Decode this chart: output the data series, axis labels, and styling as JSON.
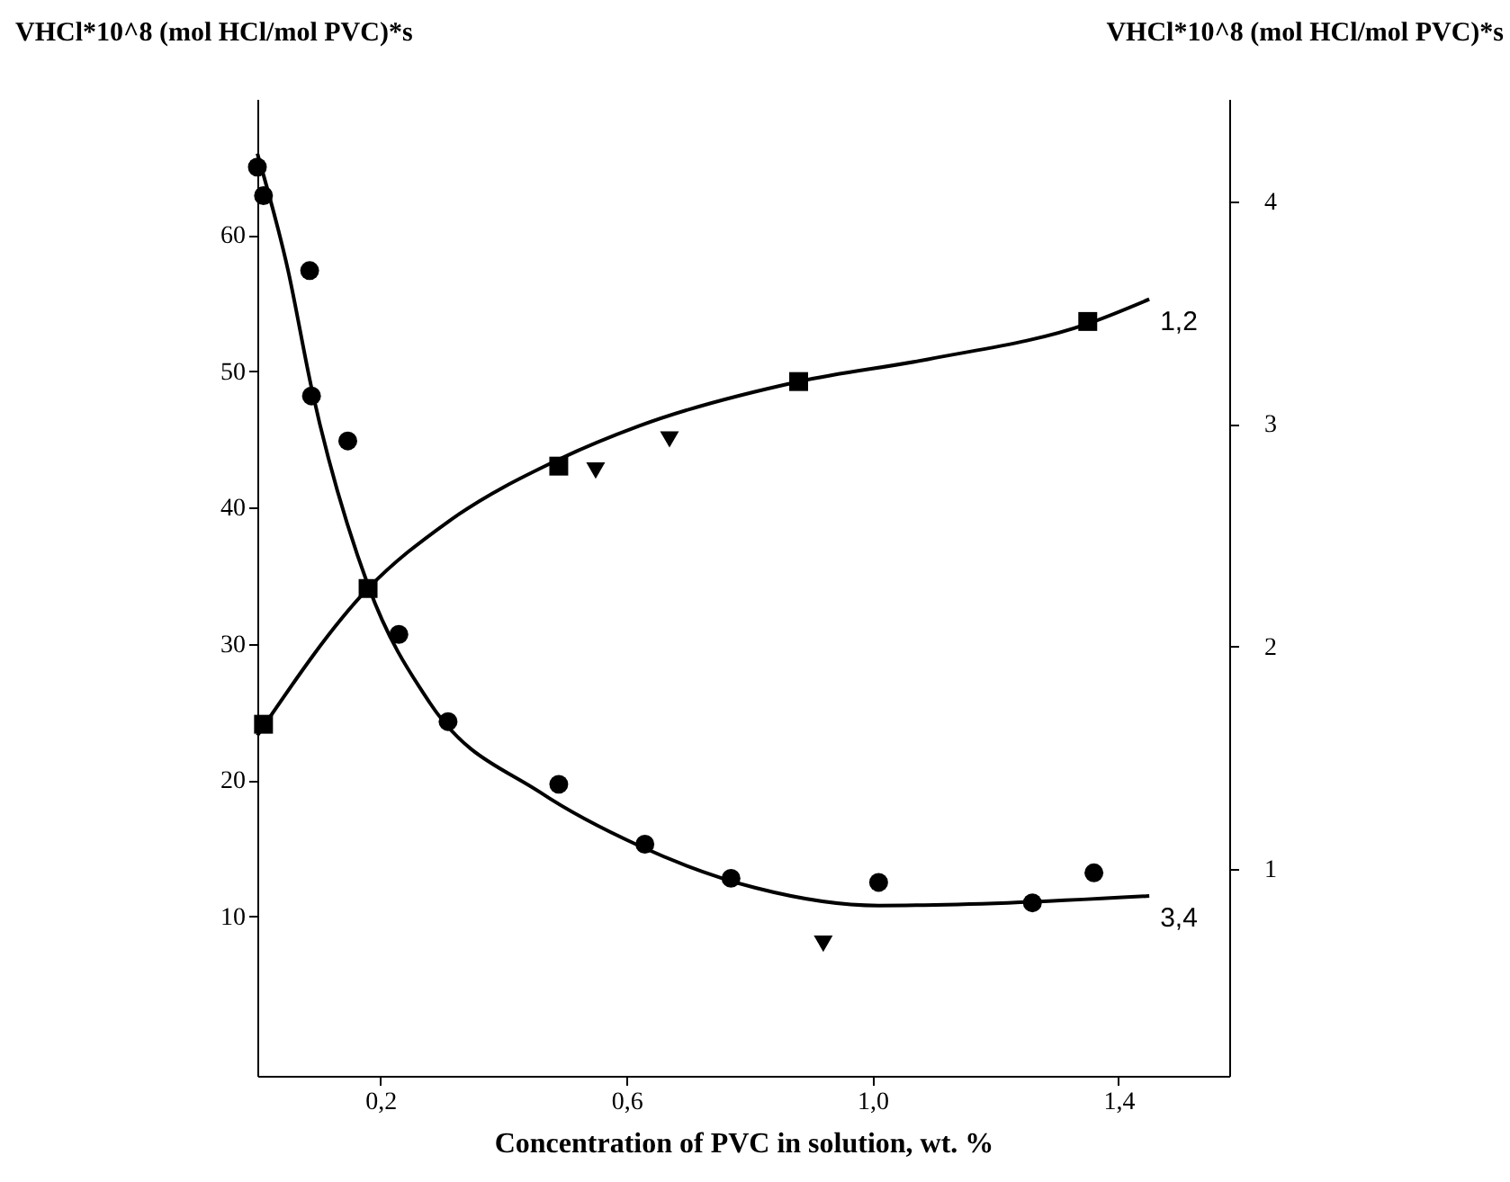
{
  "chart_data": {
    "type": "line",
    "xlabel": "Concentration of PVC in solution, wt. %",
    "ylabel": "VHCl*10^8 (mol HCl/mol PVC)*s",
    "y2label": "VHCl*10^8 (mol HCl/mol PVC)*s",
    "xlim": [
      0,
      1.58
    ],
    "xticks": [
      {
        "value": 0.2,
        "label": "0,2"
      },
      {
        "value": 0.6,
        "label": "0,6"
      },
      {
        "value": 1.0,
        "label": "1,0"
      },
      {
        "value": 1.4,
        "label": "1,4"
      }
    ],
    "ylim": [
      -1.7,
      70
    ],
    "yticks": [
      10,
      20,
      30,
      40,
      50,
      60
    ],
    "y2lim": [
      0.07,
      4.46
    ],
    "y2ticks": [
      1,
      2,
      3,
      4
    ],
    "grid": false,
    "series": [
      {
        "axis": "y2",
        "color": "#000000",
        "marker": "none",
        "line_style": "solid",
        "x": [
          0.0,
          0.18,
          0.31,
          0.49,
          0.62,
          0.88,
          1.09,
          1.35,
          1.45
        ],
        "values": [
          1.6,
          2.26,
          2.56,
          2.84,
          2.99,
          3.19,
          3.29,
          3.45,
          3.56
        ]
      },
      {
        "type": "scatter",
        "axis": "y2",
        "color": "#000000",
        "marker": "square",
        "x": [
          0.01,
          0.18,
          0.49,
          0.88,
          1.35
        ],
        "values": [
          1.65,
          2.26,
          2.81,
          3.19,
          3.46
        ]
      },
      {
        "type": "scatter",
        "axis": "y2",
        "color": "#000000",
        "marker": "triangle",
        "x": [
          0.55,
          0.67
        ],
        "values": [
          2.79,
          2.93
        ]
      },
      {
        "color": "#000000",
        "marker": "none",
        "line_style": "solid",
        "x": [
          0.0,
          0.05,
          0.088,
          0.18,
          0.28,
          0.46,
          0.62,
          0.81,
          1.01,
          1.22,
          1.45
        ],
        "values": [
          66.0,
          57.4,
          48.8,
          34.3,
          25.7,
          19.1,
          15.2,
          12.1,
          10.8,
          11.0,
          11.5
        ]
      },
      {
        "type": "scatter",
        "color": "#000000",
        "marker": "circle",
        "x": [
          0.0,
          0.085,
          0.147,
          0.23,
          0.49,
          0.77,
          1.26
        ],
        "values": [
          65.0,
          57.4,
          44.9,
          30.7,
          19.7,
          12.8,
          11.0
        ]
      },
      {
        "type": "scatter",
        "color": "#000000",
        "marker": "circle",
        "x": [
          0.01,
          0.088,
          0.31,
          0.63,
          1.01,
          1.36
        ],
        "values": [
          62.9,
          48.2,
          24.3,
          15.3,
          12.5,
          13.2
        ]
      },
      {
        "type": "scatter",
        "color": "#000000",
        "marker": "triangle",
        "x": [
          0.92
        ],
        "values": [
          8.0
        ]
      }
    ],
    "annotations": [
      "1,2",
      "3,4"
    ]
  }
}
